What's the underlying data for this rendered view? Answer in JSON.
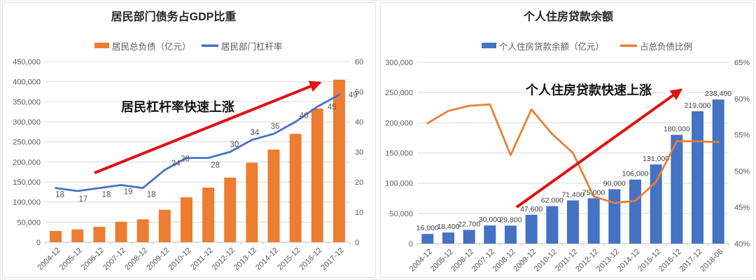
{
  "chart_data": [
    {
      "type": "bar+line",
      "title": "居民部门债务占GDP比重",
      "legend": [
        {
          "label": "居民总负债（亿元）",
          "color": "#ED7D31",
          "shape": "bar"
        },
        {
          "label": "居民部门杠杆率",
          "color": "#4472C4",
          "shape": "line"
        }
      ],
      "categories": [
        "2004-12",
        "2005-12",
        "2006-12",
        "2007-12",
        "2008-12",
        "2009-12",
        "2010-12",
        "2011-12",
        "2012-12",
        "2013-12",
        "2014-12",
        "2015-12",
        "2016-12",
        "2017-12"
      ],
      "series": [
        {
          "name": "居民总负债（亿元）",
          "type": "bar",
          "axis": "left",
          "color": "#ED7D31",
          "value_labels": false,
          "values": [
            28000,
            32000,
            38500,
            51000,
            57000,
            81000,
            112000,
            136000,
            161000,
            198000,
            231000,
            270000,
            333000,
            405000
          ]
        },
        {
          "name": "居民部门杠杆率",
          "type": "line",
          "axis": "right",
          "color": "#4472C4",
          "value_labels": true,
          "values": [
            18,
            17,
            18,
            19,
            18,
            24,
            28,
            28,
            30,
            34,
            36,
            40,
            45,
            49
          ]
        }
      ],
      "y_left": {
        "min": 0,
        "max": 450000,
        "step": 50000,
        "format": "number"
      },
      "y_right": {
        "min": 0,
        "max": 60,
        "step": 10,
        "format": "number"
      },
      "grid": true,
      "legend_position": "top",
      "annotation": {
        "text": "居民杠杆率快速上涨",
        "color": "#141414"
      },
      "arrow": {
        "color": "#E01212"
      }
    },
    {
      "type": "bar+line",
      "title": "个人住房贷款余额",
      "legend": [
        {
          "label": "个人住房贷款余额（亿元）",
          "color": "#4472C4",
          "shape": "bar"
        },
        {
          "label": "占总负债比例",
          "color": "#ED7D31",
          "shape": "line"
        }
      ],
      "categories": [
        "2004-12",
        "2005-12",
        "2006-12",
        "2007-12",
        "2008-12",
        "2009-12",
        "2010-12",
        "2011-12",
        "2012-12",
        "2013-12",
        "2014-12",
        "2015-12",
        "2016-12",
        "2017-12",
        "2018-06"
      ],
      "series": [
        {
          "name": "个人住房贷款余额（亿元）",
          "type": "bar",
          "axis": "left",
          "color": "#4472C4",
          "value_labels": true,
          "values": [
            16000,
            18400,
            22700,
            30000,
            29800,
            47600,
            62000,
            71400,
            75000,
            90000,
            106000,
            131000,
            180000,
            219000,
            238400
          ]
        },
        {
          "name": "占总负债比例",
          "type": "line",
          "axis": "right",
          "color": "#ED7D31",
          "value_labels": false,
          "values": [
            56.6,
            58.3,
            59.0,
            59.2,
            52.2,
            58.5,
            55.1,
            52.5,
            46.5,
            45.6,
            45.9,
            48.5,
            54.1,
            54.1,
            54.0
          ]
        }
      ],
      "y_left": {
        "min": 0,
        "max": 300000,
        "step": 50000,
        "format": "number"
      },
      "y_right": {
        "min": 40,
        "max": 65,
        "step": 5,
        "format": "percent"
      },
      "grid": true,
      "legend_position": "top",
      "annotation": {
        "text": "个人住房贷款快速上涨",
        "color": "#141414"
      },
      "arrow": {
        "color": "#E01212"
      }
    }
  ]
}
